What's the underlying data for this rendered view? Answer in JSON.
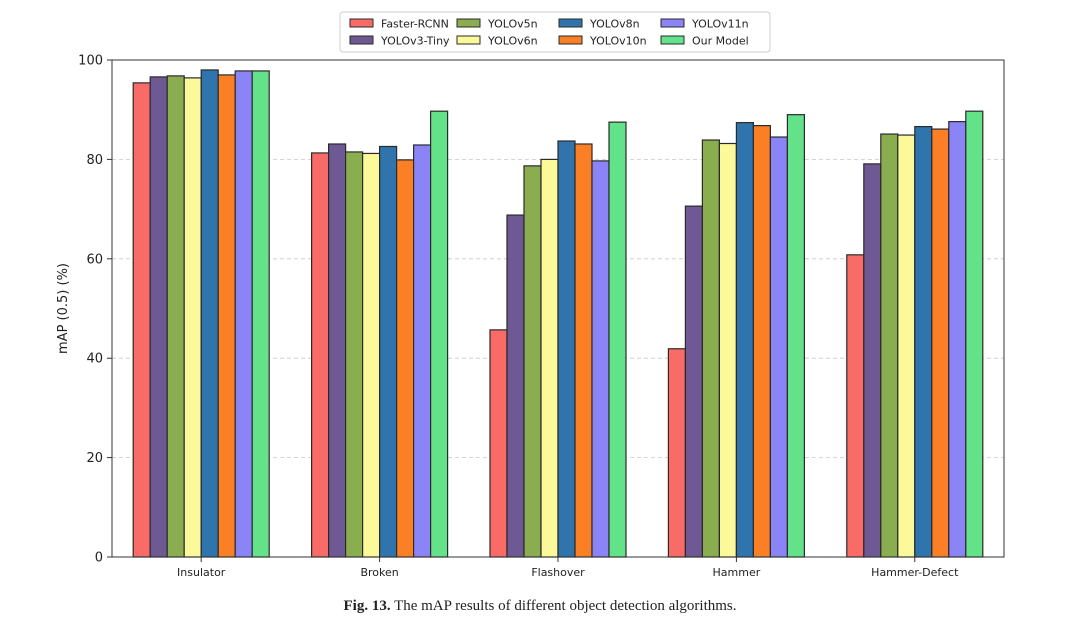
{
  "chart_data": {
    "type": "bar",
    "title": "",
    "xlabel": "",
    "ylabel": "mAP (0.5) (%)",
    "ylim": [
      0,
      100
    ],
    "yticks": [
      0,
      20,
      40,
      60,
      80,
      100
    ],
    "grid": "horizontal dashed",
    "legend_placement": "top-center",
    "categories": [
      "Insulator",
      "Broken",
      "Flashover",
      "Hammer",
      "Hammer-Defect"
    ],
    "series": [
      {
        "name": "Faster-RCNN",
        "color": "#f86b67",
        "values": [
          95.4,
          81.3,
          45.7,
          41.9,
          60.8
        ]
      },
      {
        "name": "YOLOv3-Tiny",
        "color": "#6e5994",
        "values": [
          96.6,
          83.1,
          68.8,
          70.6,
          79.1
        ]
      },
      {
        "name": "YOLOv5n",
        "color": "#8aae4f",
        "values": [
          96.8,
          81.5,
          78.7,
          83.9,
          85.1
        ]
      },
      {
        "name": "YOLOv6n",
        "color": "#fbf99a",
        "values": [
          96.4,
          81.2,
          80.0,
          83.2,
          84.9
        ]
      },
      {
        "name": "YOLOv8n",
        "color": "#2f74ad",
        "values": [
          98.0,
          82.6,
          83.7,
          87.4,
          86.6
        ]
      },
      {
        "name": "YOLOv10n",
        "color": "#fb7f24",
        "values": [
          97.0,
          79.9,
          83.1,
          86.8,
          86.1
        ]
      },
      {
        "name": "YOLOv11n",
        "color": "#8b84f6",
        "values": [
          97.8,
          82.9,
          79.7,
          84.5,
          87.6
        ]
      },
      {
        "name": "Our Model",
        "color": "#63e28a",
        "values": [
          97.8,
          89.7,
          87.5,
          89.0,
          89.7
        ]
      }
    ]
  },
  "caption": {
    "label": "Fig. 13.",
    "text": " The mAP results of different object detection algorithms."
  }
}
